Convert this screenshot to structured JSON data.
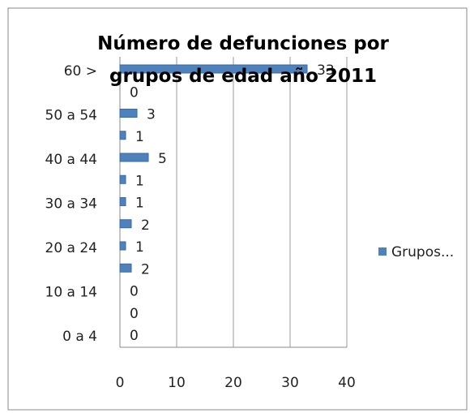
{
  "chart_data": {
    "type": "bar",
    "orientation": "horizontal",
    "title": "Número de defunciones por grupos de edad año 2011",
    "categories": [
      "0 a 4",
      null,
      "10 a 14",
      null,
      "20 a 24",
      null,
      "30 a 34",
      null,
      "40 a 44",
      null,
      "50 a 54",
      null,
      "60 >"
    ],
    "series": [
      {
        "name": "Grupos...",
        "color": "#4f81bd",
        "values": [
          0,
          0,
          0,
          2,
          1,
          2,
          1,
          1,
          5,
          1,
          3,
          0,
          33
        ]
      }
    ],
    "xlim": [
      0,
      40
    ],
    "xticks": [
      0,
      10,
      20,
      30,
      40
    ],
    "grid": true,
    "legend": "right"
  }
}
